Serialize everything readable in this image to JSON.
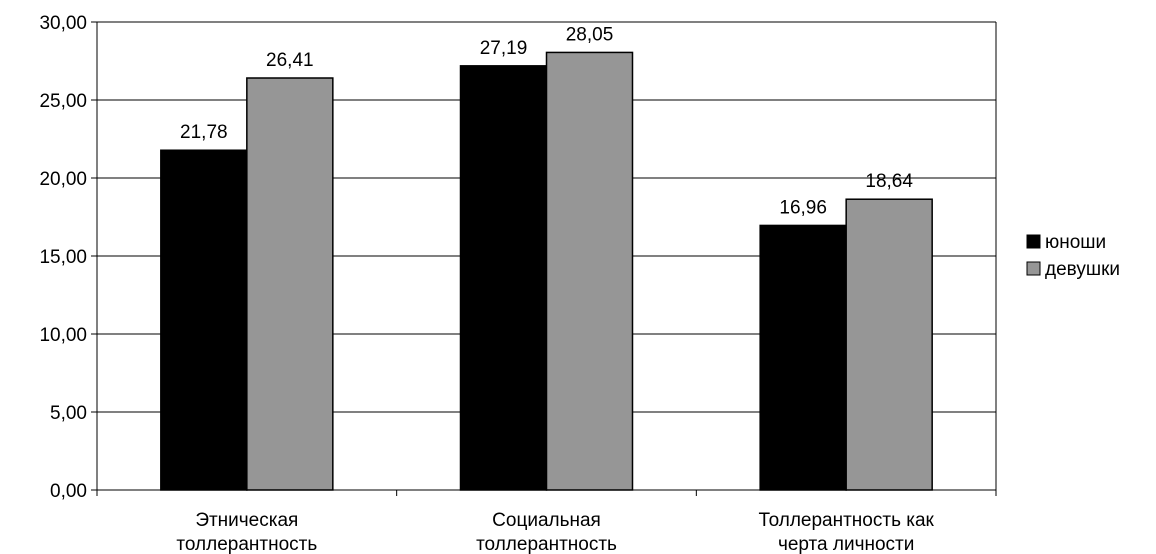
{
  "chart_data": {
    "type": "bar",
    "categories": [
      [
        "Этническая",
        "толлерантность"
      ],
      [
        "Социальная",
        "толлерантность"
      ],
      [
        "Толлерантность как",
        "черта личности"
      ]
    ],
    "series": [
      {
        "name": "юноши",
        "values": [
          21.78,
          27.19,
          16.96
        ],
        "labels": [
          "21,78",
          "27,19",
          "16,96"
        ],
        "color": "#000000"
      },
      {
        "name": "девушки",
        "values": [
          26.41,
          28.05,
          18.64
        ],
        "labels": [
          "26,41",
          "28,05",
          "18,64"
        ],
        "color": "#969696"
      }
    ],
    "ylim": [
      0,
      30
    ],
    "yticks": [
      0,
      5,
      10,
      15,
      20,
      25,
      30
    ],
    "ytick_labels": [
      "0,00",
      "5,00",
      "10,00",
      "15,00",
      "20,00",
      "25,00",
      "30,00"
    ],
    "grid": true,
    "legend_position": "right",
    "title": "",
    "xlabel": "",
    "ylabel": ""
  }
}
